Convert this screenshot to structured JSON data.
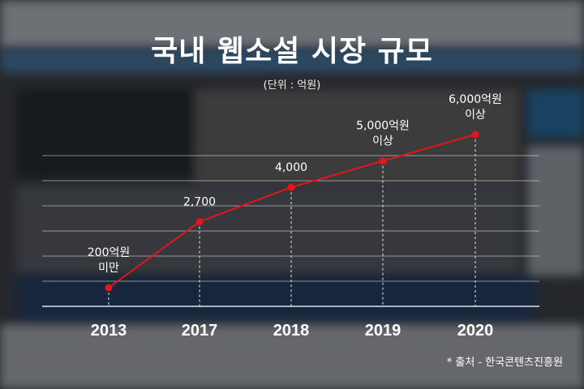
{
  "title": "국내 웹소설 시장 규모",
  "subtitle": "(단위 : 억원)",
  "source": "* 출처 - 한국콘텐츠진흥원",
  "chart_data": {
    "type": "line",
    "categories": [
      "2013",
      "2017",
      "2018",
      "2019",
      "2020"
    ],
    "values": [
      200,
      2700,
      4000,
      5000,
      6000
    ],
    "data_labels": [
      [
        "200억원",
        "미만"
      ],
      [
        "2,700"
      ],
      [
        "4,000"
      ],
      [
        "5,000억원",
        "이상"
      ],
      [
        "6,000억원",
        "이상"
      ]
    ],
    "title": "국내 웹소설 시장 규모",
    "subtitle": "(단위 : 억원)",
    "xlabel": "",
    "ylabel": "",
    "grid": true,
    "line_color": "#e8141c"
  }
}
